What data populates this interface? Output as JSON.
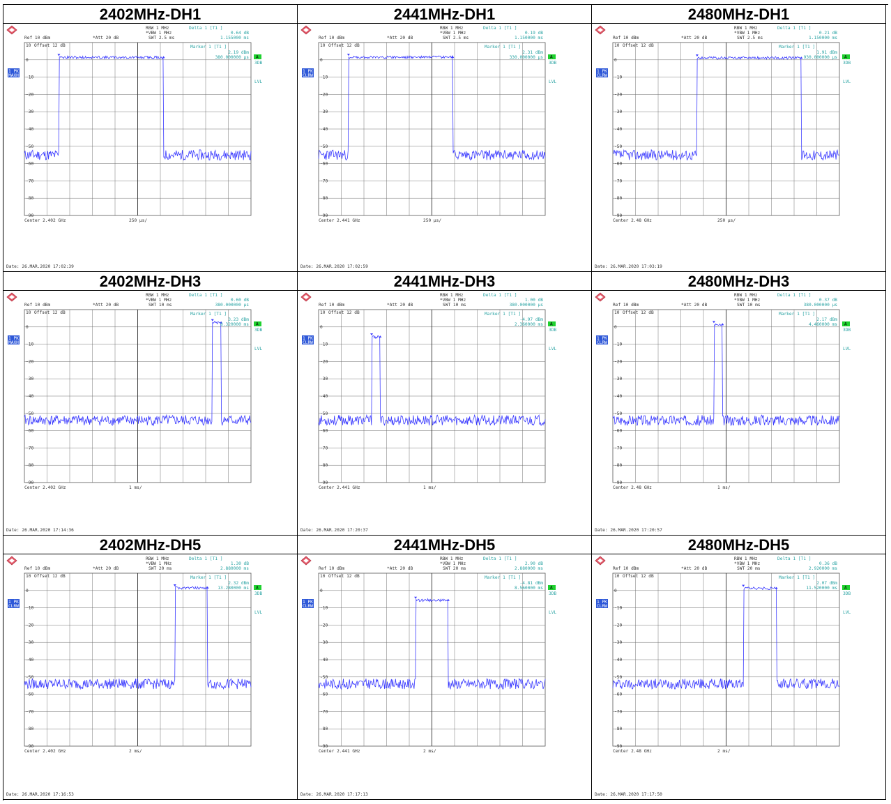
{
  "labels": {
    "rbw": "RBW 1 MHz",
    "vbw": "VBW 1 MHz",
    "ref": "Ref  10 dBm",
    "att": "Att  20 dB",
    "offset": "Offset  12 dB",
    "delta_label": "Delta 1 [T1 ]",
    "marker_label": "Marker 1 [T1 ]",
    "marker_label_alt": "Marker 1 [T1]",
    "marker_label_split": "Marker 1 [T1 ]",
    "date_prefix": "Date: 26.MAR.2020",
    "trace_ref_label": "10",
    "box_a": "A",
    "box_3db": "3DB",
    "box_lvl": "LVL",
    "trc_line1": "1 PK",
    "trc_maxh": "MAXH",
    "trc_clrw": "CLRW"
  },
  "colors": {
    "trace": "#3a3aff",
    "annot": "#29a3a3",
    "grid": "#707070",
    "green": "#1fd12f",
    "badge": "#2e58d8"
  },
  "chart_data": [
    {
      "type": "line",
      "title": "2402MHz-DH1",
      "swt": "SWT 2.5 ms",
      "delta_val": "0.64 dB",
      "delta_time": "1.155000 ms",
      "marker_val": "2.19 dBm",
      "marker_time": "380.000000 µs",
      "center": "Center 2.402 GHz",
      "div": "250 µs/",
      "time": "17:02:39",
      "trace_mode": "MAXH",
      "ylim": [
        -90,
        10
      ],
      "y_ticks": [
        "0",
        "-10",
        "-20",
        "-30",
        "-40",
        "-50",
        "-60",
        "-70",
        "-80",
        "-90"
      ],
      "x_range_ms": [
        0,
        2.5
      ],
      "pulses": [
        {
          "start": 0.38,
          "end": 1.535
        }
      ],
      "on_level": 2.19,
      "noise_level": -55,
      "seed": 11
    },
    {
      "type": "line",
      "title": "2441MHz-DH1",
      "swt": "SWT 2.5 ms",
      "delta_val": "0.19 dB",
      "delta_time": "1.150000 ms",
      "marker_val": "2.31 dBm",
      "marker_time": "330.000000 µs",
      "center": "Center 2.441 GHz",
      "div": "250 µs/",
      "time": "17:02:59",
      "trace_mode": "CLRW",
      "ylim": [
        -90,
        10
      ],
      "y_ticks": [
        "0",
        "-10",
        "-20",
        "-30",
        "-40",
        "-50",
        "-60",
        "-70",
        "-80",
        "-90"
      ],
      "x_range_ms": [
        0,
        2.5
      ],
      "pulses": [
        {
          "start": 0.33,
          "end": 1.48
        }
      ],
      "on_level": 2.31,
      "noise_level": -55,
      "seed": 23
    },
    {
      "type": "line",
      "title": "2480MHz-DH1",
      "swt": "SWT 2.5 ms",
      "delta_val": "0.21 dB",
      "delta_time": "1.150000 ms",
      "marker_val": "1.91 dBm",
      "marker_time": "930.000000 µs",
      "center": "Center 2.48 GHz",
      "div": "250 µs/",
      "time": "17:03:19",
      "trace_mode": "CLRW",
      "ylim": [
        -90,
        10
      ],
      "y_ticks": [
        "0",
        "-10",
        "-20",
        "-30",
        "-40",
        "-50",
        "-60",
        "-70",
        "-80",
        "-90"
      ],
      "x_range_ms": [
        0,
        2.5
      ],
      "pulses": [
        {
          "start": 0.93,
          "end": 2.08
        }
      ],
      "on_level": 1.91,
      "noise_level": -55,
      "seed": 37
    },
    {
      "type": "line",
      "title": "2402MHz-DH3",
      "swt": "SWT 10 ms",
      "delta_val": "0.60 dB",
      "delta_time": "380.000000 µs",
      "marker_val": "3.23 dBm",
      "marker_time": "8.320000 ms",
      "center": "Center 2.402 GHz",
      "div": "1 ms/",
      "time": "17:14:36",
      "trace_mode": "MAXH",
      "ylim": [
        -90,
        10
      ],
      "y_ticks": [
        "0",
        "-10",
        "-20",
        "-30",
        "-40",
        "-50",
        "-60",
        "-70",
        "-80",
        "-90"
      ],
      "x_range_ms": [
        0,
        10
      ],
      "pulses": [
        {
          "start": 8.3,
          "end": 8.68
        }
      ],
      "on_level": 3.23,
      "noise_level": -54,
      "seed": 41
    },
    {
      "type": "line",
      "title": "2441MHz-DH3",
      "swt": "SWT 10 ms",
      "delta_val": "1.00 dB",
      "delta_time": "380.000000 µs",
      "marker_val": "-4.97 dBm",
      "marker_time": "2.360000 ms",
      "center": "Center 2.441 GHz",
      "div": "1 ms/",
      "time": "17:20:37",
      "trace_mode": "CLRW",
      "ylim": [
        -90,
        10
      ],
      "y_ticks": [
        "0",
        "-10",
        "-20",
        "-30",
        "-40",
        "-50",
        "-60",
        "-70",
        "-80",
        "-90"
      ],
      "x_range_ms": [
        0,
        10
      ],
      "pulses": [
        {
          "start": 2.34,
          "end": 2.72
        }
      ],
      "on_level": -4.97,
      "noise_level": -54,
      "seed": 53
    },
    {
      "type": "line",
      "title": "2480MHz-DH3",
      "swt": "SWT 10 ms",
      "delta_val": "0.37 dB",
      "delta_time": "380.000000 µs",
      "marker_val": "2.17 dBm",
      "marker_time": "4.460000 ms",
      "center": "Center 2.48 GHz",
      "div": "1 ms/",
      "time": "17:20:57",
      "trace_mode": "CLRW",
      "ylim": [
        -90,
        10
      ],
      "y_ticks": [
        "0",
        "-10",
        "-20",
        "-30",
        "-40",
        "-50",
        "-60",
        "-70",
        "-80",
        "-90"
      ],
      "x_range_ms": [
        0,
        10
      ],
      "pulses": [
        {
          "start": 4.46,
          "end": 4.84
        }
      ],
      "on_level": 2.17,
      "noise_level": -54,
      "seed": 67
    },
    {
      "type": "line",
      "title": "2402MHz-DH5",
      "swt": "SWT 20 ms",
      "delta_val": "1.30 dB",
      "delta_time": "2.880000 ms",
      "marker_val": "2.32 dBm",
      "marker_time": "13.280000 ms",
      "center": "Center 2.402 GHz",
      "div": "2 ms/",
      "time": "17:16:53",
      "trace_mode": "CLRW",
      "ylim": [
        -90,
        10
      ],
      "y_ticks": [
        "0",
        "-10",
        "-20",
        "-30",
        "-40",
        "-50",
        "-60",
        "-70",
        "-80",
        "-90"
      ],
      "x_range_ms": [
        0,
        20
      ],
      "pulses": [
        {
          "start": 13.28,
          "end": 16.16
        }
      ],
      "on_level": 2.32,
      "noise_level": -54,
      "seed": 79
    },
    {
      "type": "line",
      "title": "2441MHz-DH5",
      "swt": "SWT 20 ms",
      "delta_val": "2.90 dB",
      "delta_time": "2.880000 ms",
      "marker_val": "-4.81 dBm",
      "marker_time": "8.560000 ms",
      "center": "Center 2.441 GHz",
      "div": "2 ms/",
      "time": "17:17:13",
      "trace_mode": "CLRW",
      "ylim": [
        -90,
        10
      ],
      "y_ticks": [
        "0",
        "-10",
        "-20",
        "-30",
        "-40",
        "-50",
        "-60",
        "-70",
        "-80",
        "-90"
      ],
      "x_range_ms": [
        0,
        20
      ],
      "pulses": [
        {
          "start": 8.56,
          "end": 11.44
        }
      ],
      "on_level": -4.81,
      "noise_level": -54,
      "seed": 83
    },
    {
      "type": "line",
      "title": "2480MHz-DH5",
      "swt": "SWT 20 ms",
      "delta_val": "0.36 dB",
      "delta_time": "2.920000 ms",
      "marker_val": "2.07 dBm",
      "marker_time": "11.520000 ms",
      "center": "Center 2.48 GHz",
      "div": "2 ms/",
      "time": "17:17:50",
      "trace_mode": "CLRW",
      "ylim": [
        -90,
        10
      ],
      "y_ticks": [
        "0",
        "-10",
        "-20",
        "-30",
        "-40",
        "-50",
        "-60",
        "-70",
        "-80",
        "-90"
      ],
      "x_range_ms": [
        0,
        20
      ],
      "pulses": [
        {
          "start": 11.52,
          "end": 14.44
        }
      ],
      "on_level": 2.07,
      "noise_level": -54,
      "seed": 97
    }
  ]
}
